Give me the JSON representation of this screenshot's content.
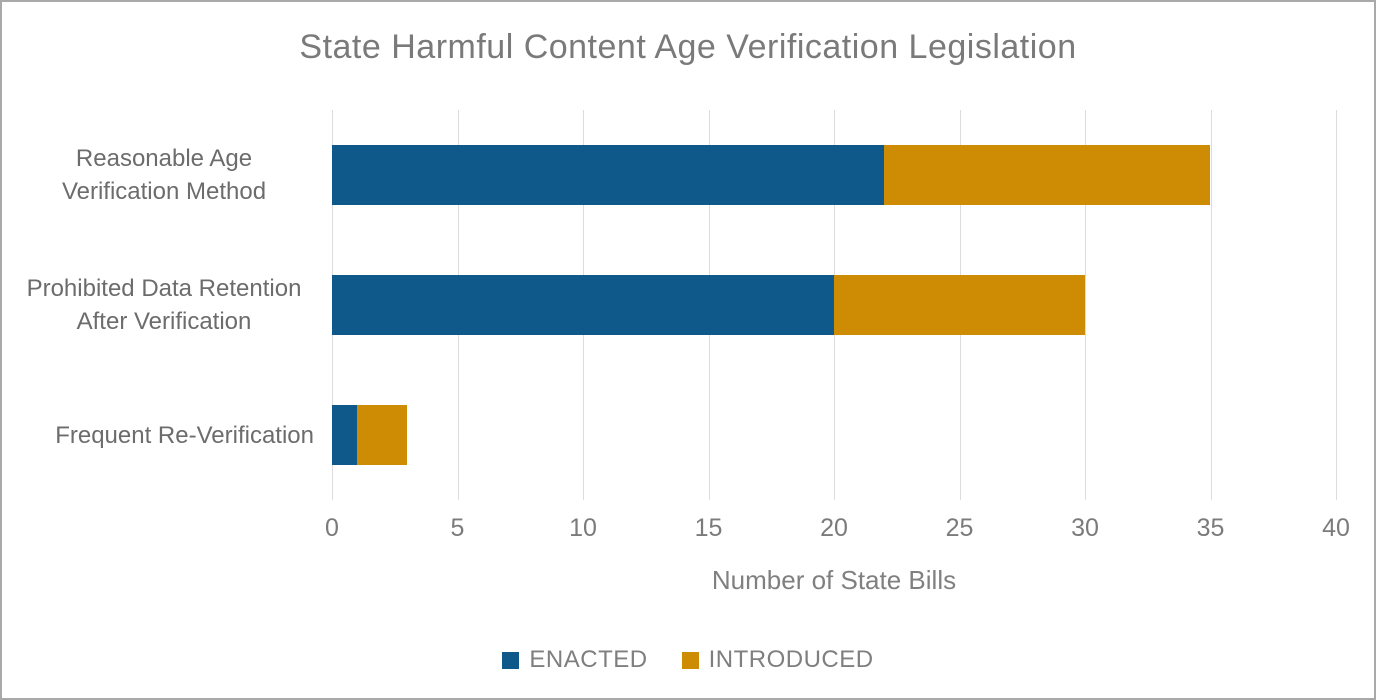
{
  "window": {
    "background": "#ffffff",
    "border_color": "#a9a9a9"
  },
  "chart_data": {
    "type": "bar",
    "orientation": "horizontal",
    "stacked": true,
    "title": "State Harmful Content Age Verification Legislation",
    "xlabel": "Number of State Bills",
    "categories": [
      "Reasonable Age Verification Method",
      "Prohibited Data Retention After Verification",
      "Frequent Re-Verification"
    ],
    "series": [
      {
        "name": "ENACTED",
        "color": "#0F598A",
        "values": [
          22,
          20,
          1
        ]
      },
      {
        "name": "INTRODUCED",
        "color": "#CD8C04",
        "values": [
          13,
          10,
          2
        ]
      }
    ],
    "totals": [
      35,
      30,
      3
    ],
    "xlim": [
      0,
      40
    ],
    "xticks": [
      0,
      5,
      10,
      15,
      20,
      25,
      30,
      35,
      40
    ],
    "grid": "vertical",
    "gridline_color": "#dcdcdc",
    "legend_position": "bottom",
    "text_color_title": "#7a7a7a",
    "text_color_labels": "#6c6c6c",
    "text_color_ticks": "#7b7b7b"
  }
}
